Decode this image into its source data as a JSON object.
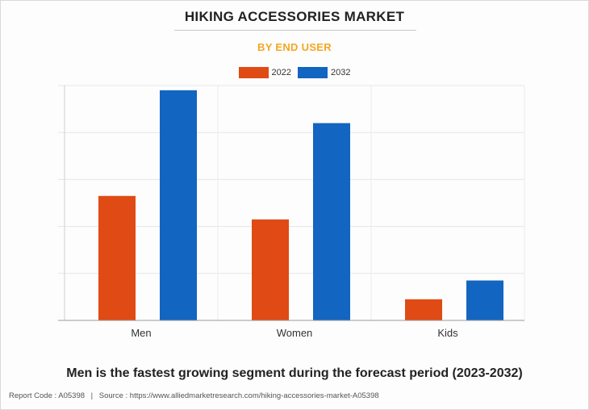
{
  "header": {
    "title": "HIKING ACCESSORIES MARKET",
    "subtitle": "BY END USER"
  },
  "chart_data": {
    "type": "bar",
    "title": "HIKING ACCESSORIES MARKET",
    "subtitle": "BY END USER",
    "categories": [
      "Men",
      "Women",
      "Kids"
    ],
    "series": [
      {
        "name": "2022",
        "values": [
          53,
          43,
          9
        ],
        "color": "#e04a14"
      },
      {
        "name": "2032",
        "values": [
          98,
          84,
          17
        ],
        "color": "#1265c0"
      }
    ],
    "xlabel": "",
    "ylabel": "",
    "ylim": [
      0,
      100
    ],
    "grid": true,
    "legend": "top-center"
  },
  "headline": "Men is the fastest growing segment during the forecast period (2023-2032)",
  "footer": {
    "report_code": "Report Code : A05398",
    "separator": "|",
    "source": "Source : https://www.alliedmarketresearch.com/hiking-accessories-market-A05398"
  }
}
